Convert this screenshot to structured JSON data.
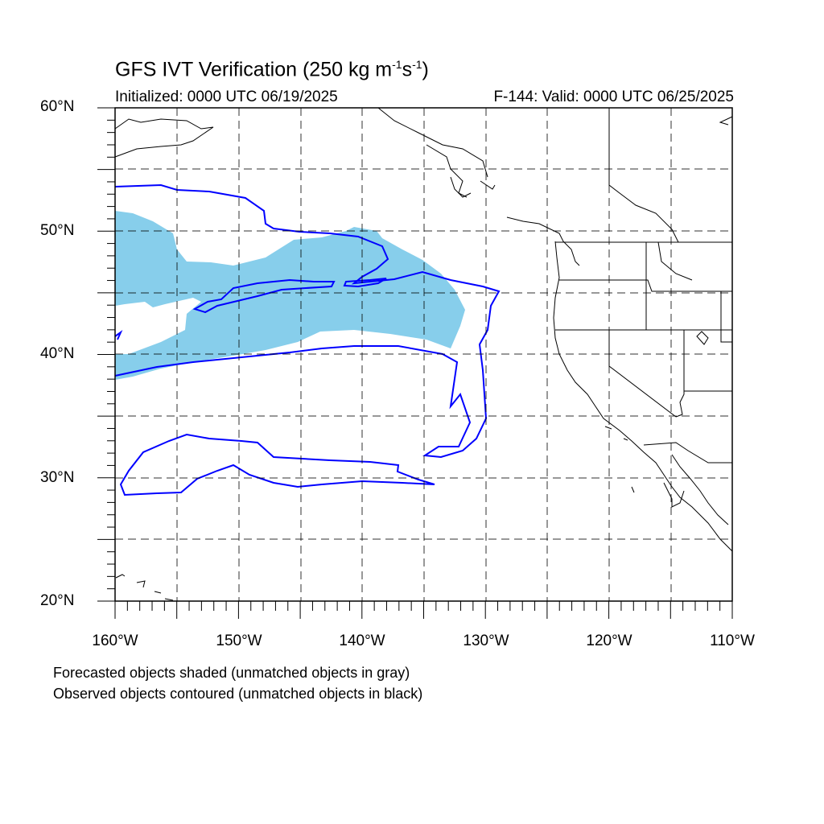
{
  "title": {
    "main": "GFS IVT Verification (250 kg m",
    "exp1": "-1",
    "mid": "s",
    "exp2": "-1",
    "end": ")"
  },
  "initialized": "Initialized: 0000 UTC 06/19/2025",
  "valid": "F-144: Valid: 0000 UTC 06/25/2025",
  "lat_labels": [
    "60°N",
    "50°N",
    "40°N",
    "30°N",
    "20°N"
  ],
  "lon_labels": [
    "160°W",
    "150°W",
    "140°W",
    "130°W",
    "120°W",
    "110°W"
  ],
  "notes": [
    "Forecasted objects shaded (unmatched objects in gray)",
    "Observed objects contoured (unmatched objects in black)"
  ],
  "extent": {
    "lon_min": -160,
    "lon_max": -110,
    "lat_min": 20,
    "lat_max": 60
  },
  "colors": {
    "forecast_fill": "#87ceeb",
    "observed_contour": "#0000ff",
    "coast": "#000000",
    "grid": "#000000"
  }
}
